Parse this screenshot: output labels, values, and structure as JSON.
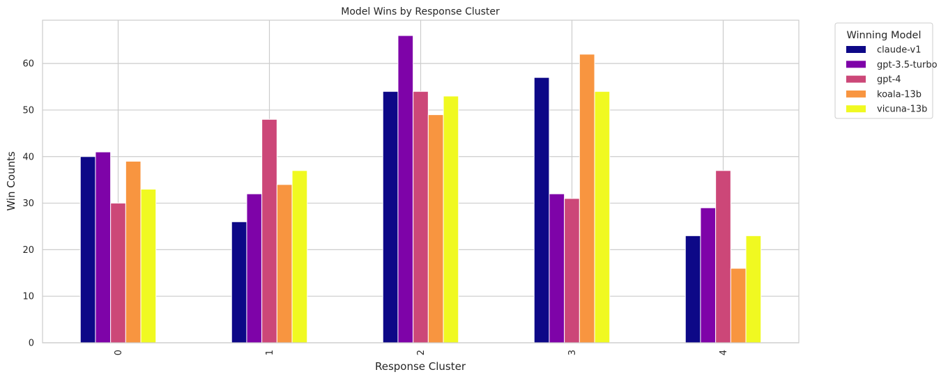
{
  "chart_data": {
    "type": "bar",
    "title": "Model Wins by Response Cluster",
    "xlabel": "Response Cluster",
    "ylabel": "Win Counts",
    "categories": [
      "0",
      "1",
      "2",
      "3",
      "4"
    ],
    "yticks": [
      "0",
      "10",
      "20",
      "30",
      "40",
      "50",
      "60"
    ],
    "ylim": [
      0,
      69.3
    ],
    "grid": true,
    "legend": {
      "title": "Winning Model",
      "placement": "outside-top-right"
    },
    "series": [
      {
        "name": "claude-v1",
        "color": "#0d0887",
        "values": [
          40,
          26,
          54,
          57,
          23
        ]
      },
      {
        "name": "gpt-3.5-turbo",
        "color": "#7e03a8",
        "values": [
          41,
          32,
          66,
          32,
          29
        ]
      },
      {
        "name": "gpt-4",
        "color": "#cc4778",
        "values": [
          30,
          48,
          54,
          31,
          37
        ]
      },
      {
        "name": "koala-13b",
        "color": "#f89540",
        "values": [
          39,
          34,
          49,
          62,
          16
        ]
      },
      {
        "name": "vicuna-13b",
        "color": "#f0f921",
        "values": [
          33,
          37,
          53,
          54,
          23
        ]
      }
    ]
  }
}
